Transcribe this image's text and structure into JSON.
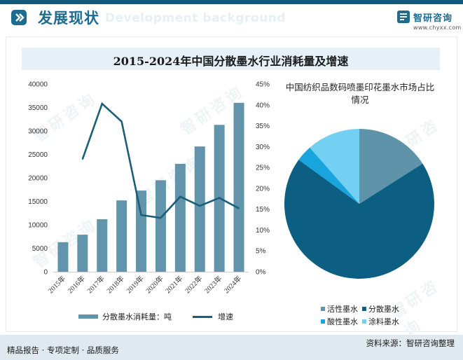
{
  "header": {
    "title": "发展现状",
    "bg_text": "Development background",
    "logo_name": "智研咨询",
    "logo_url": "www.chyxx.com"
  },
  "watermark_text": "智研咨询",
  "chart_data": [
    {
      "type": "bar+line",
      "title": "2015-2024年中国分散墨水行业消耗量及增速",
      "categories": [
        "2015年",
        "2016年",
        "2017年",
        "2018年",
        "2019年",
        "2020年",
        "2021年",
        "2022年",
        "2023年",
        "2024年"
      ],
      "series": [
        {
          "name": "分散墨水消耗量：吨",
          "type": "bar",
          "axis": "left",
          "color": "#6294ab",
          "values": [
            6300,
            7900,
            11200,
            15200,
            17300,
            19500,
            23000,
            26700,
            31300,
            36000
          ]
        },
        {
          "name": "增速",
          "type": "line",
          "axis": "right",
          "color": "#1b5e7a",
          "values": [
            null,
            27,
            40.3,
            36,
            13.6,
            12.9,
            18,
            15.8,
            17.7,
            15.2
          ]
        }
      ],
      "y_left": {
        "min": 0,
        "max": 40000,
        "step": 5000,
        "ticks": [
          "0",
          "5000",
          "10000",
          "15000",
          "20000",
          "25000",
          "30000",
          "35000",
          "40000"
        ]
      },
      "y_right": {
        "min": 0,
        "max": 45,
        "step": 5,
        "ticks": [
          "0%",
          "5%",
          "10%",
          "15%",
          "20%",
          "25%",
          "30%",
          "35%",
          "40%",
          "45%"
        ]
      },
      "legend_position": "bottom",
      "grid": false
    },
    {
      "type": "pie",
      "title": "中国纺织品数码喷墨印花墨水市场占比情况",
      "labels": [
        "活性墨水",
        "分散墨水",
        "酸性墨水",
        "涂料墨水"
      ],
      "values": [
        16,
        69,
        3.5,
        11.5
      ],
      "colors": [
        "#5f93aa",
        "#0c5f82",
        "#18a4dc",
        "#74d0f2"
      ],
      "legend_position": "bottom"
    }
  ],
  "footer": {
    "left": "精品报告 · 专项定制 · 品质服务",
    "right": "资料来源：智研咨询整理"
  }
}
